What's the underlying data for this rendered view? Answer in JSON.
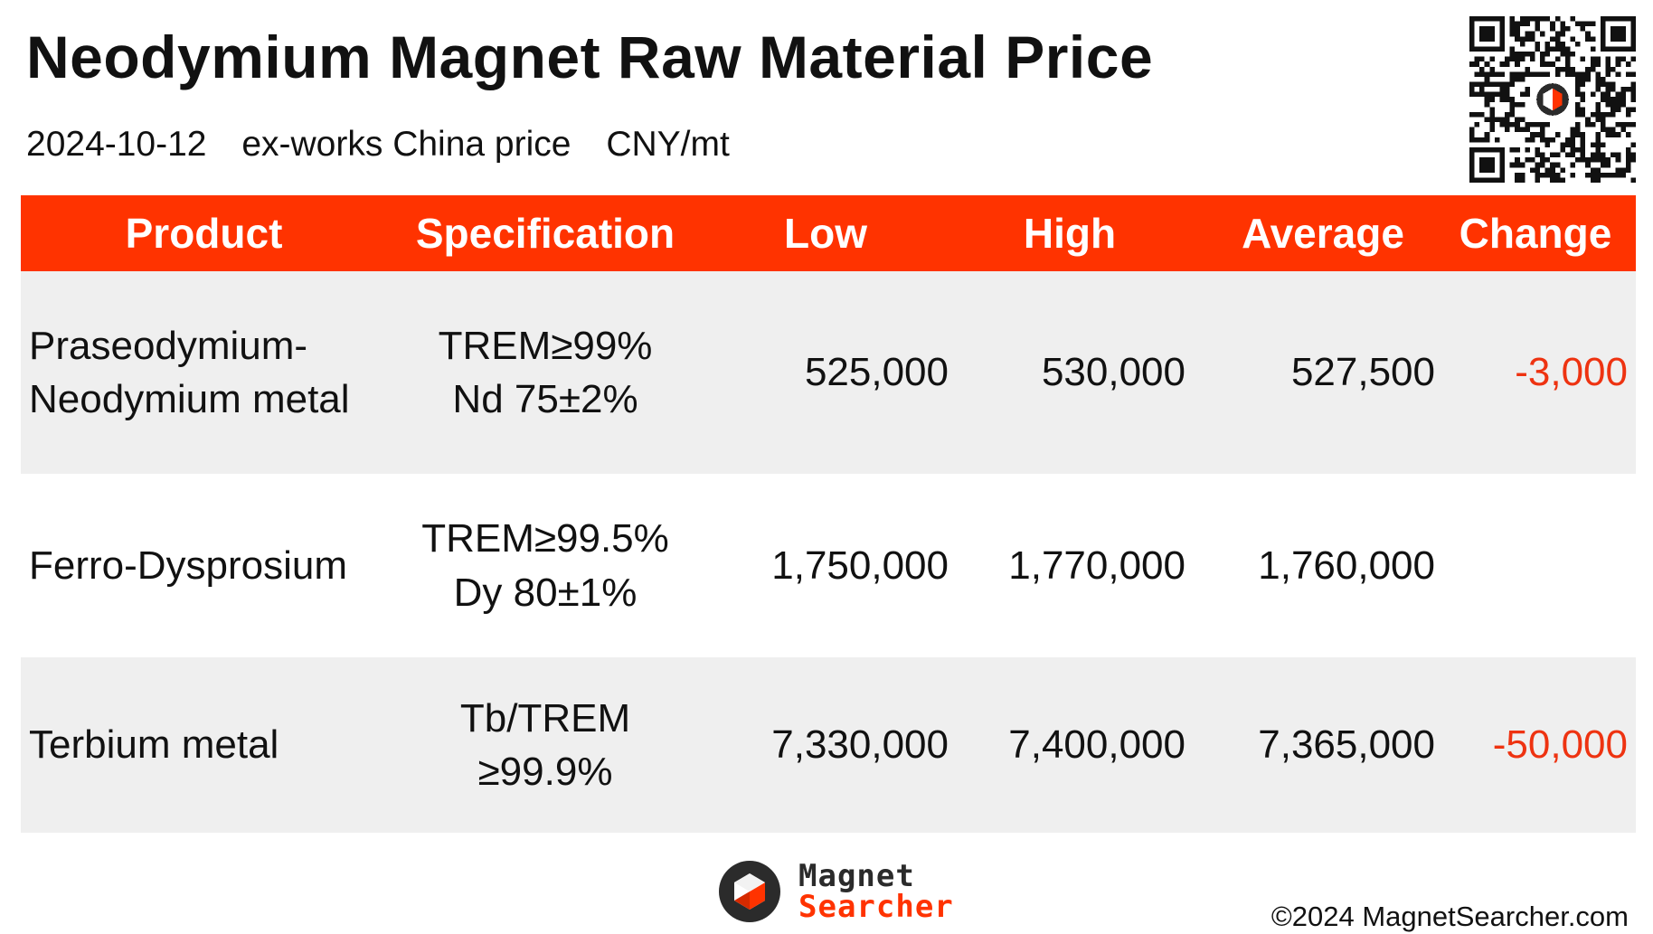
{
  "header": {
    "title": "Neodymium Magnet Raw Material Price",
    "date": "2024-10-12",
    "price_basis": "ex-works China price",
    "unit": "CNY/mt"
  },
  "table": {
    "columns": {
      "product": "Product",
      "specification": "Specification",
      "low": "Low",
      "high": "High",
      "average": "Average",
      "change": "Change"
    },
    "rows": [
      {
        "product_line1": "Praseodymium-",
        "product_line2": "Neodymium metal",
        "spec_line1": "TREM≥99%",
        "spec_line2": "Nd 75±2%",
        "low": "525,000",
        "high": "530,000",
        "average": "527,500",
        "change": "-3,000"
      },
      {
        "product_line1": "Ferro-Dysprosium",
        "product_line2": "",
        "spec_line1": "TREM≥99.5%",
        "spec_line2": "Dy 80±1%",
        "low": "1,750,000",
        "high": "1,770,000",
        "average": "1,760,000",
        "change": ""
      },
      {
        "product_line1": "Terbium metal",
        "product_line2": "",
        "spec_line1": "Tb/TREM",
        "spec_line2": "≥99.9%",
        "low": "7,330,000",
        "high": "7,400,000",
        "average": "7,365,000",
        "change": "-50,000"
      }
    ]
  },
  "footer": {
    "logo_line1": "Magnet",
    "logo_line2": "Searcher",
    "copyright": "©2024 MagnetSearcher.com"
  },
  "colors": {
    "accent": "#ff3300",
    "negative_change": "#ee3311",
    "row_shade": "#efefef",
    "logo_dark": "#2b2b2b"
  },
  "icons": {
    "qr": "qr-code-icon",
    "logo": "magnet-searcher-logo-icon"
  }
}
